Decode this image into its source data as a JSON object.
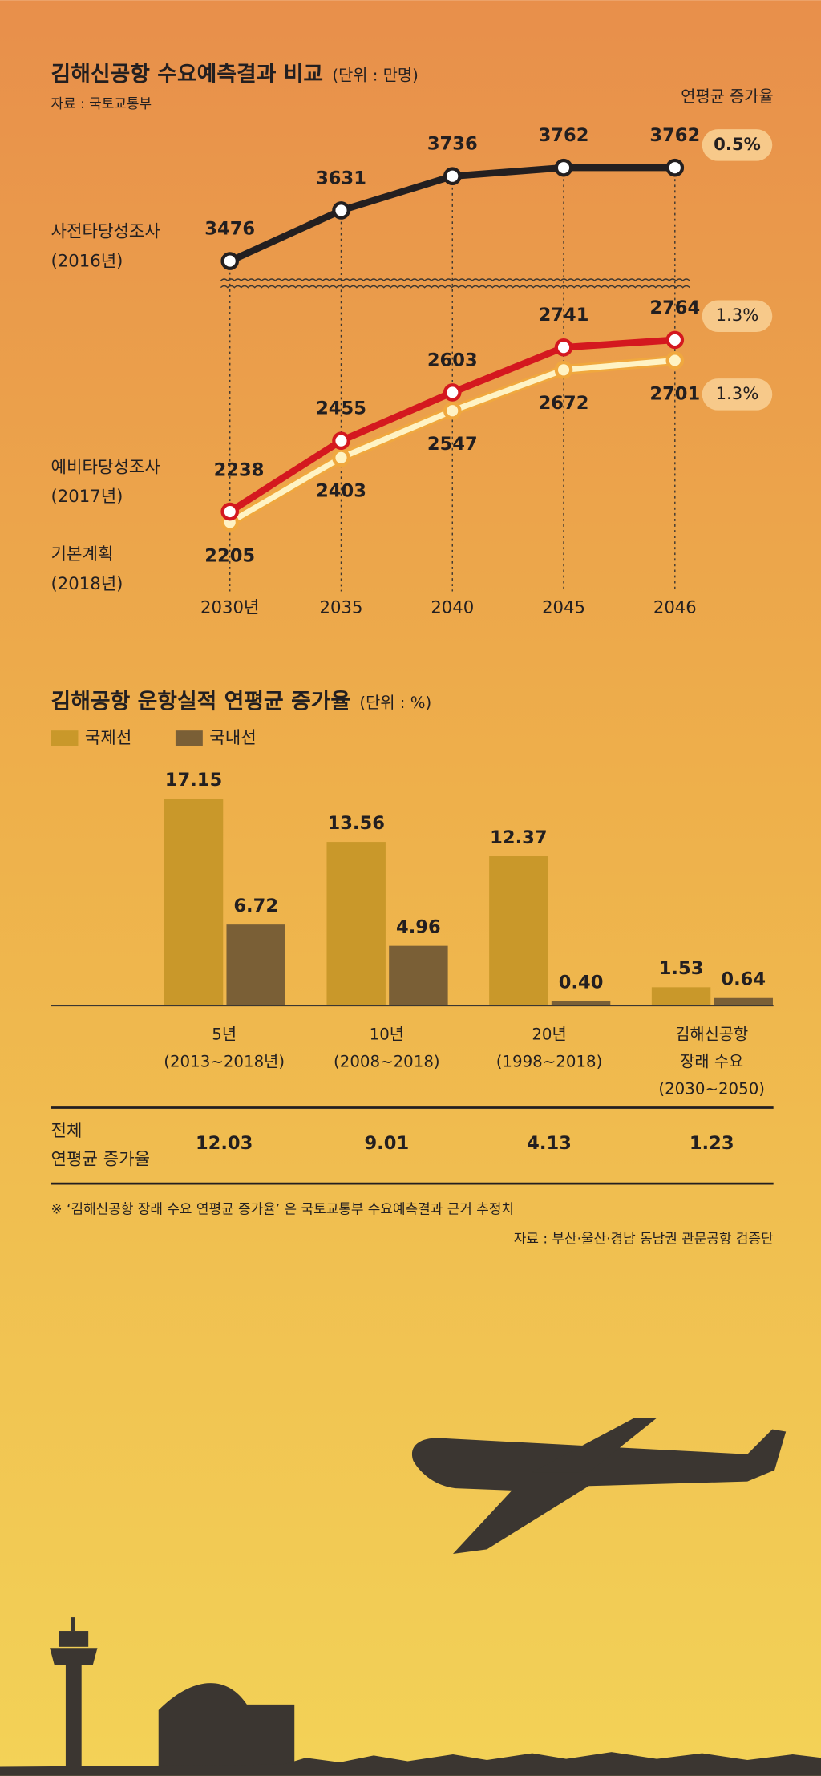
{
  "chart_data": [
    {
      "type": "line",
      "title": "김해신공항 수요예측결과 비교",
      "unit": "(단위 : 만명)",
      "source": "자료 : 국토교통부",
      "rate_header": "연평균 증가율",
      "categories": [
        "2030년",
        "2035",
        "2040",
        "2045",
        "2046"
      ],
      "ylim": [
        2150,
        3800
      ],
      "axis_break": [
        2900,
        3440
      ],
      "series": [
        {
          "name": "사전타당성조사",
          "name_sub": "(2016년)",
          "color": "#231f20",
          "values": [
            3476,
            3631,
            3736,
            3762,
            3762
          ],
          "rate": "0.5%"
        },
        {
          "name": "예비타당성조사",
          "name_sub": "(2017년)",
          "color": "#d4181f",
          "values": [
            2238,
            2455,
            2603,
            2741,
            2764
          ],
          "rate": "1.3%"
        },
        {
          "name": "기본계획",
          "name_sub": "(2018년)",
          "color": "#fff3c4",
          "values": [
            2205,
            2403,
            2547,
            2672,
            2701
          ],
          "rate": "1.3%"
        }
      ]
    },
    {
      "type": "bar",
      "title": "김해공항 운항실적 연평균 증가율",
      "unit": "(단위 : %)",
      "categories": [
        [
          "5년",
          "(2013~2018년)"
        ],
        [
          "10년",
          "(2008~2018)"
        ],
        [
          "20년",
          "(1998~2018)"
        ],
        [
          "김해신공항",
          "장래 수요",
          "(2030~2050)"
        ]
      ],
      "ylim": [
        0,
        18
      ],
      "series": [
        {
          "name": "국제선",
          "color": "#c9982a",
          "values": [
            17.15,
            13.56,
            12.37,
            1.53
          ]
        },
        {
          "name": "국내선",
          "color": "#7a5f36",
          "values": [
            6.72,
            4.96,
            0.4,
            0.64
          ],
          "value_labels": [
            "6.72",
            "4.96",
            "0.40",
            "0.64"
          ]
        }
      ],
      "total_label": [
        "전체",
        "연평균 증가율"
      ],
      "total_values": [
        "12.03",
        "9.01",
        "4.13",
        "1.23"
      ],
      "note": "※ ‘김해신공항 장래 수요 연평균 증가율’ 은 국토교통부 수요예측결과 근거 추정치",
      "source": "자료 : 부산·울산·경남 동남권 관문공항 검증단"
    }
  ]
}
